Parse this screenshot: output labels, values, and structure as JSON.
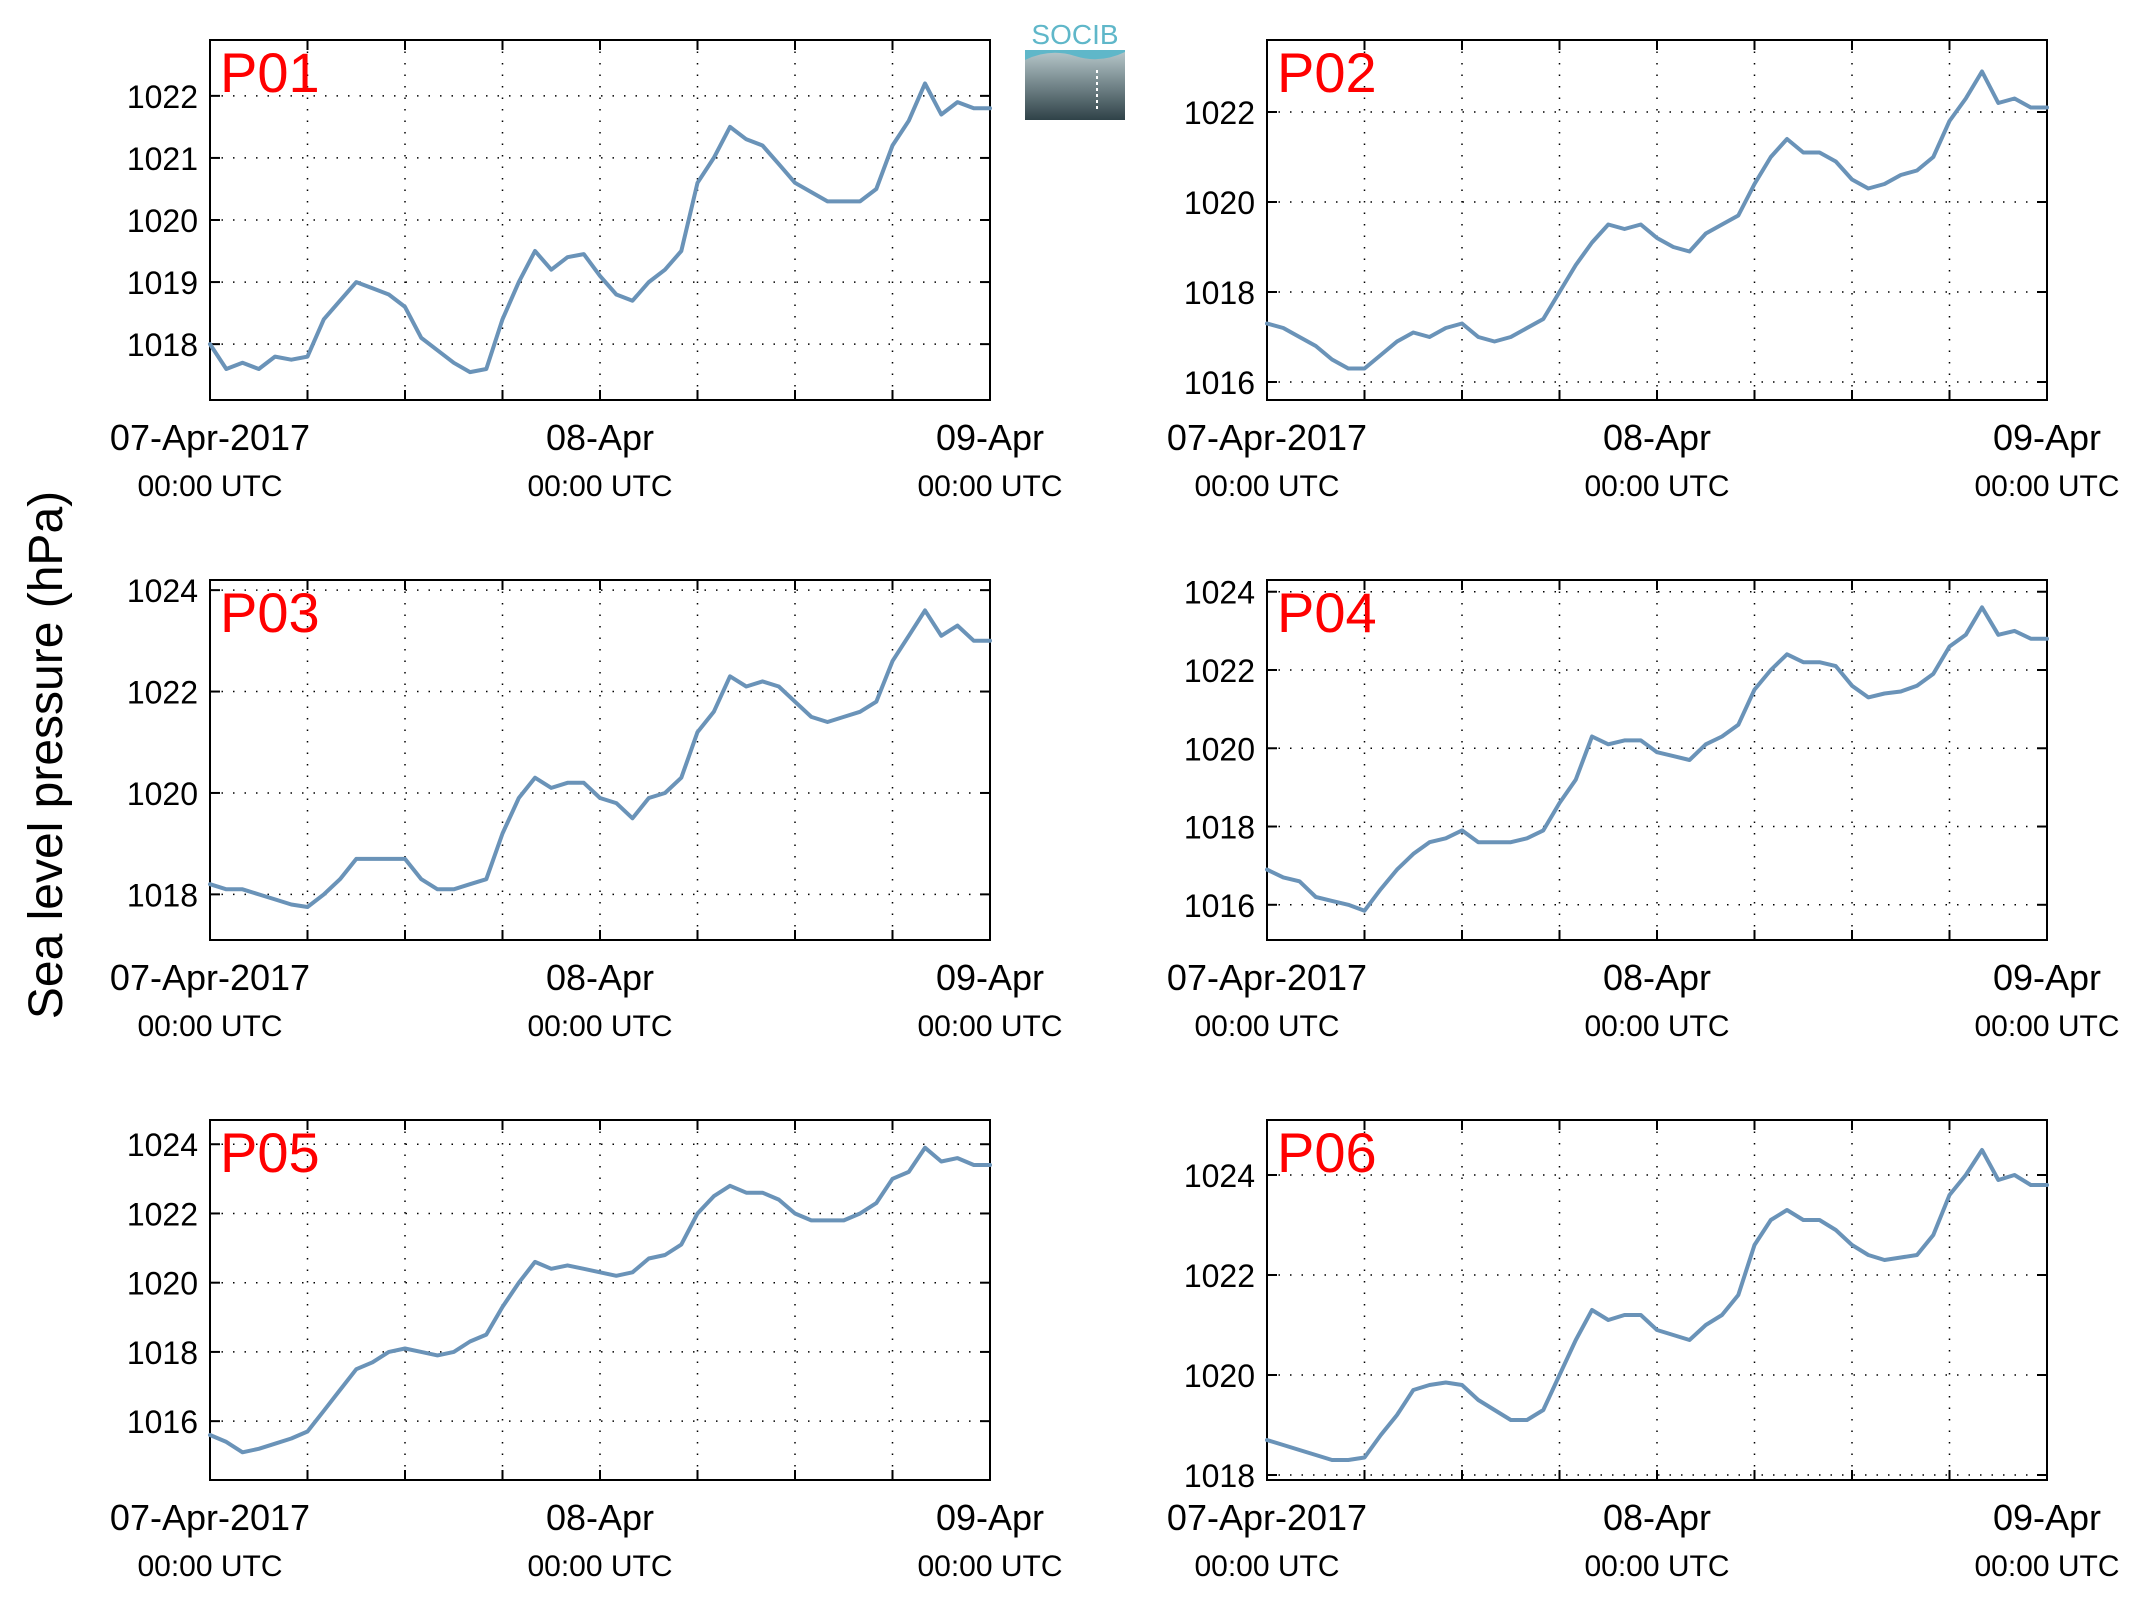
{
  "figure": {
    "ylabel": "Sea level pressure (hPa)",
    "x_tick_labels": [
      {
        "date": "07-Apr-2017",
        "time": "00:00 UTC"
      },
      {
        "date": "08-Apr",
        "time": "00:00 UTC"
      },
      {
        "date": "09-Apr",
        "time": "00:00 UTC"
      }
    ],
    "logo": {
      "text": "SOCIB"
    },
    "colors": {
      "line": "#6a93b8",
      "panel_label": "#ff0000",
      "grid": "#000000"
    }
  },
  "chart_data": [
    {
      "type": "line",
      "name": "P01",
      "title": "P01",
      "xlim": [
        0,
        48
      ],
      "ylim": [
        1017.1,
        1022.9
      ],
      "yticks": [
        1018,
        1019,
        1020,
        1021,
        1022
      ],
      "x_ticks_hours": [
        0,
        24,
        48
      ],
      "grid": true,
      "x_unit": "hours since 07-Apr-2017 00:00 UTC",
      "x": [
        0,
        1,
        2,
        3,
        4,
        5,
        6,
        7,
        8,
        9,
        10,
        11,
        12,
        13,
        14,
        15,
        16,
        17,
        18,
        19,
        20,
        21,
        22,
        23,
        24,
        25,
        26,
        27,
        28,
        29,
        30,
        31,
        32,
        33,
        34,
        35,
        36,
        37,
        38,
        39,
        40,
        41,
        42,
        43,
        44,
        45,
        46,
        47,
        48
      ],
      "y": [
        1018.0,
        1017.6,
        1017.7,
        1017.6,
        1017.8,
        1017.75,
        1017.8,
        1018.4,
        1018.7,
        1019.0,
        1018.9,
        1018.8,
        1018.6,
        1018.1,
        1017.9,
        1017.7,
        1017.55,
        1017.6,
        1018.4,
        1019.0,
        1019.5,
        1019.2,
        1019.4,
        1019.45,
        1019.1,
        1018.8,
        1018.7,
        1019.0,
        1019.2,
        1019.5,
        1020.6,
        1021.0,
        1021.5,
        1021.3,
        1021.2,
        1020.9,
        1020.6,
        1020.45,
        1020.3,
        1020.3,
        1020.3,
        1020.5,
        1021.2,
        1021.6,
        1022.2,
        1021.7,
        1021.9,
        1021.8,
        1021.8
      ]
    },
    {
      "type": "line",
      "name": "P02",
      "title": "P02",
      "xlim": [
        0,
        48
      ],
      "ylim": [
        1015.6,
        1023.6
      ],
      "yticks": [
        1016,
        1018,
        1020,
        1022
      ],
      "x_ticks_hours": [
        0,
        24,
        48
      ],
      "grid": true,
      "x_unit": "hours since 07-Apr-2017 00:00 UTC",
      "x": [
        0,
        1,
        2,
        3,
        4,
        5,
        6,
        7,
        8,
        9,
        10,
        11,
        12,
        13,
        14,
        15,
        16,
        17,
        18,
        19,
        20,
        21,
        22,
        23,
        24,
        25,
        26,
        27,
        28,
        29,
        30,
        31,
        32,
        33,
        34,
        35,
        36,
        37,
        38,
        39,
        40,
        41,
        42,
        43,
        44,
        45,
        46,
        47,
        48
      ],
      "y": [
        1017.3,
        1017.2,
        1017.0,
        1016.8,
        1016.5,
        1016.3,
        1016.3,
        1016.6,
        1016.9,
        1017.1,
        1017.0,
        1017.2,
        1017.3,
        1017.0,
        1016.9,
        1017.0,
        1017.2,
        1017.4,
        1018.0,
        1018.6,
        1019.1,
        1019.5,
        1019.4,
        1019.5,
        1019.2,
        1019.0,
        1018.9,
        1019.3,
        1019.5,
        1019.7,
        1020.4,
        1021.0,
        1021.4,
        1021.1,
        1021.1,
        1020.9,
        1020.5,
        1020.3,
        1020.4,
        1020.6,
        1020.7,
        1021.0,
        1021.8,
        1022.3,
        1022.9,
        1022.2,
        1022.3,
        1022.1,
        1022.1
      ]
    },
    {
      "type": "line",
      "name": "P03",
      "title": "P03",
      "xlim": [
        0,
        48
      ],
      "ylim": [
        1017.1,
        1024.2
      ],
      "yticks": [
        1018,
        1020,
        1022,
        1024
      ],
      "x_ticks_hours": [
        0,
        24,
        48
      ],
      "grid": true,
      "x_unit": "hours since 07-Apr-2017 00:00 UTC",
      "x": [
        0,
        1,
        2,
        3,
        4,
        5,
        6,
        7,
        8,
        9,
        10,
        11,
        12,
        13,
        14,
        15,
        16,
        17,
        18,
        19,
        20,
        21,
        22,
        23,
        24,
        25,
        26,
        27,
        28,
        29,
        30,
        31,
        32,
        33,
        34,
        35,
        36,
        37,
        38,
        39,
        40,
        41,
        42,
        43,
        44,
        45,
        46,
        47,
        48
      ],
      "y": [
        1018.2,
        1018.1,
        1018.1,
        1018.0,
        1017.9,
        1017.8,
        1017.75,
        1018.0,
        1018.3,
        1018.7,
        1018.7,
        1018.7,
        1018.7,
        1018.3,
        1018.1,
        1018.1,
        1018.2,
        1018.3,
        1019.2,
        1019.9,
        1020.3,
        1020.1,
        1020.2,
        1020.2,
        1019.9,
        1019.8,
        1019.5,
        1019.9,
        1020.0,
        1020.3,
        1021.2,
        1021.6,
        1022.3,
        1022.1,
        1022.2,
        1022.1,
        1021.8,
        1021.5,
        1021.4,
        1021.5,
        1021.6,
        1021.8,
        1022.6,
        1023.1,
        1023.6,
        1023.1,
        1023.3,
        1023.0,
        1023.0
      ]
    },
    {
      "type": "line",
      "name": "P04",
      "title": "P04",
      "xlim": [
        0,
        48
      ],
      "ylim": [
        1015.1,
        1024.3
      ],
      "yticks": [
        1016,
        1018,
        1020,
        1022,
        1024
      ],
      "x_ticks_hours": [
        0,
        24,
        48
      ],
      "grid": true,
      "x_unit": "hours since 07-Apr-2017 00:00 UTC",
      "x": [
        0,
        1,
        2,
        3,
        4,
        5,
        6,
        7,
        8,
        9,
        10,
        11,
        12,
        13,
        14,
        15,
        16,
        17,
        18,
        19,
        20,
        21,
        22,
        23,
        24,
        25,
        26,
        27,
        28,
        29,
        30,
        31,
        32,
        33,
        34,
        35,
        36,
        37,
        38,
        39,
        40,
        41,
        42,
        43,
        44,
        45,
        46,
        47,
        48
      ],
      "y": [
        1016.9,
        1016.7,
        1016.6,
        1016.2,
        1016.1,
        1016.0,
        1015.85,
        1016.4,
        1016.9,
        1017.3,
        1017.6,
        1017.7,
        1017.9,
        1017.6,
        1017.6,
        1017.6,
        1017.7,
        1017.9,
        1018.6,
        1019.2,
        1020.3,
        1020.1,
        1020.2,
        1020.2,
        1019.9,
        1019.8,
        1019.7,
        1020.1,
        1020.3,
        1020.6,
        1021.5,
        1022.0,
        1022.4,
        1022.2,
        1022.2,
        1022.1,
        1021.6,
        1021.3,
        1021.4,
        1021.45,
        1021.6,
        1021.9,
        1022.6,
        1022.9,
        1023.6,
        1022.9,
        1023.0,
        1022.8,
        1022.8
      ]
    },
    {
      "type": "line",
      "name": "P05",
      "title": "P05",
      "xlim": [
        0,
        48
      ],
      "ylim": [
        1014.3,
        1024.7
      ],
      "yticks": [
        1016,
        1018,
        1020,
        1022,
        1024
      ],
      "x_ticks_hours": [
        0,
        24,
        48
      ],
      "grid": true,
      "x_unit": "hours since 07-Apr-2017 00:00 UTC",
      "x": [
        0,
        1,
        2,
        3,
        4,
        5,
        6,
        7,
        8,
        9,
        10,
        11,
        12,
        13,
        14,
        15,
        16,
        17,
        18,
        19,
        20,
        21,
        22,
        23,
        24,
        25,
        26,
        27,
        28,
        29,
        30,
        31,
        32,
        33,
        34,
        35,
        36,
        37,
        38,
        39,
        40,
        41,
        42,
        43,
        44,
        45,
        46,
        47,
        48
      ],
      "y": [
        1015.6,
        1015.4,
        1015.1,
        1015.2,
        1015.35,
        1015.5,
        1015.7,
        1016.3,
        1016.9,
        1017.5,
        1017.7,
        1018.0,
        1018.1,
        1018.0,
        1017.9,
        1018.0,
        1018.3,
        1018.5,
        1019.3,
        1020.0,
        1020.6,
        1020.4,
        1020.5,
        1020.4,
        1020.3,
        1020.2,
        1020.3,
        1020.7,
        1020.8,
        1021.1,
        1022.0,
        1022.5,
        1022.8,
        1022.6,
        1022.6,
        1022.4,
        1022.0,
        1021.8,
        1021.8,
        1021.8,
        1022.0,
        1022.3,
        1023.0,
        1023.2,
        1023.9,
        1023.5,
        1023.6,
        1023.4,
        1023.4
      ]
    },
    {
      "type": "line",
      "name": "P06",
      "title": "P06",
      "xlim": [
        0,
        48
      ],
      "ylim": [
        1017.9,
        1025.1
      ],
      "yticks": [
        1018,
        1020,
        1022,
        1024
      ],
      "x_ticks_hours": [
        0,
        24,
        48
      ],
      "grid": true,
      "x_unit": "hours since 07-Apr-2017 00:00 UTC",
      "x": [
        0,
        1,
        2,
        3,
        4,
        5,
        6,
        7,
        8,
        9,
        10,
        11,
        12,
        13,
        14,
        15,
        16,
        17,
        18,
        19,
        20,
        21,
        22,
        23,
        24,
        25,
        26,
        27,
        28,
        29,
        30,
        31,
        32,
        33,
        34,
        35,
        36,
        37,
        38,
        39,
        40,
        41,
        42,
        43,
        44,
        45,
        46,
        47,
        48
      ],
      "y": [
        1018.7,
        1018.6,
        1018.5,
        1018.4,
        1018.3,
        1018.3,
        1018.35,
        1018.8,
        1019.2,
        1019.7,
        1019.8,
        1019.85,
        1019.8,
        1019.5,
        1019.3,
        1019.1,
        1019.1,
        1019.3,
        1020.0,
        1020.7,
        1021.3,
        1021.1,
        1021.2,
        1021.2,
        1020.9,
        1020.8,
        1020.7,
        1021.0,
        1021.2,
        1021.6,
        1022.6,
        1023.1,
        1023.3,
        1023.1,
        1023.1,
        1022.9,
        1022.6,
        1022.4,
        1022.3,
        1022.35,
        1022.4,
        1022.8,
        1023.6,
        1024.0,
        1024.5,
        1023.9,
        1024.0,
        1023.8,
        1023.8
      ]
    }
  ]
}
